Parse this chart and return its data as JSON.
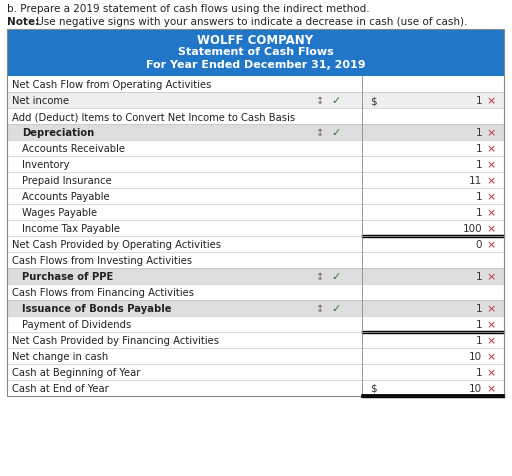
{
  "title_line1": "WOLFF COMPANY",
  "title_line2": "Statement of Cash Flows",
  "title_line3": "For Year Ended December 31, 2019",
  "header_bg": "#2176C7",
  "header_text_color": "#FFFFFF",
  "top_text1": "b. Prepare a 2019 statement of cash flows using the indirect method.",
  "top_text2_bold": "Note:",
  "top_text2_normal": " Use negative signs with your answers to indicate a decrease in cash (use of cash).",
  "rows": [
    {
      "label": "Net Cash Flow from Operating Activities",
      "indent": 0,
      "value": "",
      "dollar": false,
      "bold": false,
      "has_arrows": false,
      "has_check": false,
      "has_x": false,
      "bg": "#FFFFFF",
      "border_bottom": false
    },
    {
      "label": "Net income",
      "indent": 0,
      "value": "1",
      "dollar": true,
      "bold": false,
      "has_arrows": true,
      "has_check": true,
      "has_x": true,
      "bg": "#EEEEEE",
      "border_bottom": false
    },
    {
      "label": "Add (Deduct) Items to Convert Net Income to Cash Basis",
      "indent": 0,
      "value": "",
      "dollar": false,
      "bold": false,
      "has_arrows": false,
      "has_check": false,
      "has_x": false,
      "bg": "#FFFFFF",
      "border_bottom": false
    },
    {
      "label": "Depreciation",
      "indent": 1,
      "value": "1",
      "dollar": false,
      "bold": true,
      "has_arrows": true,
      "has_check": true,
      "has_x": true,
      "bg": "#DDDDDD",
      "border_bottom": false
    },
    {
      "label": "Accounts Receivable",
      "indent": 1,
      "value": "1",
      "dollar": false,
      "bold": false,
      "has_arrows": false,
      "has_check": false,
      "has_x": true,
      "bg": "#FFFFFF",
      "border_bottom": false
    },
    {
      "label": "Inventory",
      "indent": 1,
      "value": "1",
      "dollar": false,
      "bold": false,
      "has_arrows": false,
      "has_check": false,
      "has_x": true,
      "bg": "#FFFFFF",
      "border_bottom": false
    },
    {
      "label": "Prepaid Insurance",
      "indent": 1,
      "value": "11",
      "dollar": false,
      "bold": false,
      "has_arrows": false,
      "has_check": false,
      "has_x": true,
      "bg": "#FFFFFF",
      "border_bottom": false
    },
    {
      "label": "Accounts Payable",
      "indent": 1,
      "value": "1",
      "dollar": false,
      "bold": false,
      "has_arrows": false,
      "has_check": false,
      "has_x": true,
      "bg": "#FFFFFF",
      "border_bottom": false
    },
    {
      "label": "Wages Payable",
      "indent": 1,
      "value": "1",
      "dollar": false,
      "bold": false,
      "has_arrows": false,
      "has_check": false,
      "has_x": true,
      "bg": "#FFFFFF",
      "border_bottom": false
    },
    {
      "label": "Income Tax Payable",
      "indent": 1,
      "value": "100",
      "dollar": false,
      "bold": false,
      "has_arrows": false,
      "has_check": false,
      "has_x": true,
      "bg": "#FFFFFF",
      "border_bottom": true
    },
    {
      "label": "Net Cash Provided by Operating Activities",
      "indent": 0,
      "value": "0",
      "dollar": false,
      "bold": false,
      "has_arrows": false,
      "has_check": false,
      "has_x": true,
      "bg": "#FFFFFF",
      "border_bottom": false
    },
    {
      "label": "Cash Flows from Investing Activities",
      "indent": 0,
      "value": "",
      "dollar": false,
      "bold": false,
      "has_arrows": false,
      "has_check": false,
      "has_x": false,
      "bg": "#FFFFFF",
      "border_bottom": false
    },
    {
      "label": "Purchase of PPE",
      "indent": 1,
      "value": "1",
      "dollar": false,
      "bold": true,
      "has_arrows": true,
      "has_check": true,
      "has_x": true,
      "bg": "#DDDDDD",
      "border_bottom": false
    },
    {
      "label": "Cash Flows from Financing Activities",
      "indent": 0,
      "value": "",
      "dollar": false,
      "bold": false,
      "has_arrows": false,
      "has_check": false,
      "has_x": false,
      "bg": "#FFFFFF",
      "border_bottom": false
    },
    {
      "label": "Issuance of Bonds Payable",
      "indent": 1,
      "value": "1",
      "dollar": false,
      "bold": true,
      "has_arrows": true,
      "has_check": true,
      "has_x": true,
      "bg": "#DDDDDD",
      "border_bottom": false
    },
    {
      "label": "Payment of Dividends",
      "indent": 1,
      "value": "1",
      "dollar": false,
      "bold": false,
      "has_arrows": false,
      "has_check": false,
      "has_x": true,
      "bg": "#FFFFFF",
      "border_bottom": true
    },
    {
      "label": "Net Cash Provided by Financing Activities",
      "indent": 0,
      "value": "1",
      "dollar": false,
      "bold": false,
      "has_arrows": false,
      "has_check": false,
      "has_x": true,
      "bg": "#FFFFFF",
      "border_bottom": false
    },
    {
      "label": "Net change in cash",
      "indent": 0,
      "value": "10",
      "dollar": false,
      "bold": false,
      "has_arrows": false,
      "has_check": false,
      "has_x": true,
      "bg": "#FFFFFF",
      "border_bottom": false
    },
    {
      "label": "Cash at Beginning of Year",
      "indent": 0,
      "value": "1",
      "dollar": false,
      "bold": false,
      "has_arrows": false,
      "has_check": false,
      "has_x": true,
      "bg": "#FFFFFF",
      "border_bottom": false
    },
    {
      "label": "Cash at End of Year",
      "indent": 0,
      "value": "10",
      "dollar": true,
      "bold": false,
      "has_arrows": false,
      "has_check": false,
      "has_x": true,
      "bg": "#FFFFFF",
      "border_bottom": true
    }
  ],
  "figsize": [
    5.12,
    4.77
  ],
  "dpi": 100
}
